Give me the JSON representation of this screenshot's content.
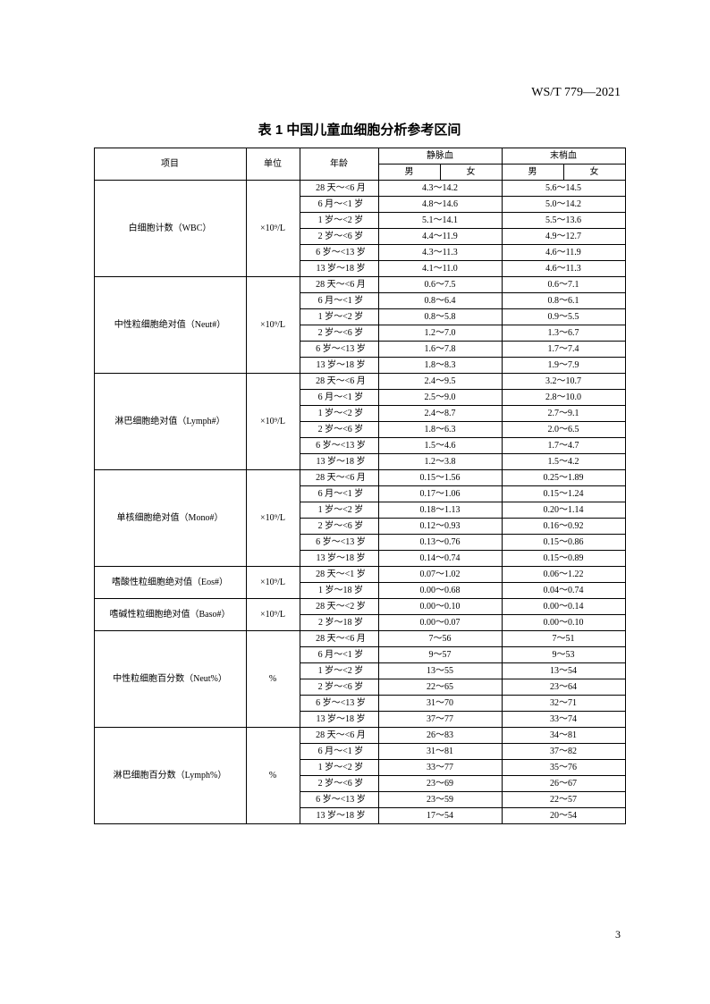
{
  "doc_code": "WS/T 779—2021",
  "table_title": "表 1  中国儿童血细胞分析参考区间",
  "page_number": "3",
  "header": {
    "item": "项目",
    "unit": "单位",
    "age": "年龄",
    "venous": "静脉血",
    "capillary": "末梢血",
    "male": "男",
    "female": "女"
  },
  "unit_e9": "×10⁹/L",
  "unit_pct": "%",
  "groups": [
    {
      "item": "白细胞计数（WBC）",
      "unit": "×10⁹/L",
      "rows": [
        {
          "age": "28 天～<6 月",
          "v": "4.3～14.2",
          "c": "5.6～14.5"
        },
        {
          "age": "6 月～<1 岁",
          "v": "4.8～14.6",
          "c": "5.0～14.2"
        },
        {
          "age": "1 岁～<2 岁",
          "v": "5.1～14.1",
          "c": "5.5～13.6"
        },
        {
          "age": "2 岁～<6 岁",
          "v": "4.4～11.9",
          "c": "4.9～12.7"
        },
        {
          "age": "6 岁～<13 岁",
          "v": "4.3～11.3",
          "c": "4.6～11.9"
        },
        {
          "age": "13 岁～18 岁",
          "v": "4.1～11.0",
          "c": "4.6～11.3"
        }
      ]
    },
    {
      "item": "中性粒细胞绝对值（Neut#）",
      "unit": "×10⁹/L",
      "rows": [
        {
          "age": "28 天～<6 月",
          "v": "0.6～7.5",
          "c": "0.6～7.1"
        },
        {
          "age": "6 月～<1 岁",
          "v": "0.8～6.4",
          "c": "0.8～6.1"
        },
        {
          "age": "1 岁～<2 岁",
          "v": "0.8～5.8",
          "c": "0.9～5.5"
        },
        {
          "age": "2 岁～<6 岁",
          "v": "1.2～7.0",
          "c": "1.3～6.7"
        },
        {
          "age": "6 岁～<13 岁",
          "v": "1.6～7.8",
          "c": "1.7～7.4"
        },
        {
          "age": "13 岁～18 岁",
          "v": "1.8～8.3",
          "c": "1.9～7.9"
        }
      ]
    },
    {
      "item": "淋巴细胞绝对值（Lymph#）",
      "unit": "×10⁹/L",
      "rows": [
        {
          "age": "28 天～<6 月",
          "v": "2.4～9.5",
          "c": "3.2～10.7"
        },
        {
          "age": "6 月～<1 岁",
          "v": "2.5～9.0",
          "c": "2.8～10.0"
        },
        {
          "age": "1 岁～<2 岁",
          "v": "2.4～8.7",
          "c": "2.7～9.1"
        },
        {
          "age": "2 岁～<6 岁",
          "v": "1.8～6.3",
          "c": "2.0～6.5"
        },
        {
          "age": "6 岁～<13 岁",
          "v": "1.5～4.6",
          "c": "1.7～4.7"
        },
        {
          "age": "13 岁～18 岁",
          "v": "1.2～3.8",
          "c": "1.5～4.2"
        }
      ]
    },
    {
      "item": "单核细胞绝对值（Mono#）",
      "unit": "×10⁹/L",
      "rows": [
        {
          "age": "28 天～<6 月",
          "v": "0.15～1.56",
          "c": "0.25～1.89"
        },
        {
          "age": "6 月～<1 岁",
          "v": "0.17～1.06",
          "c": "0.15～1.24"
        },
        {
          "age": "1 岁～<2 岁",
          "v": "0.18～1.13",
          "c": "0.20～1.14"
        },
        {
          "age": "2 岁～<6 岁",
          "v": "0.12～0.93",
          "c": "0.16～0.92"
        },
        {
          "age": "6 岁～<13 岁",
          "v": "0.13～0.76",
          "c": "0.15～0.86"
        },
        {
          "age": "13 岁～18 岁",
          "v": "0.14～0.74",
          "c": "0.15～0.89"
        }
      ]
    },
    {
      "item": "嗜酸性粒细胞绝对值（Eos#）",
      "unit": "×10⁹/L",
      "rows": [
        {
          "age": "28 天～<1 岁",
          "v": "0.07～1.02",
          "c": "0.06～1.22"
        },
        {
          "age": "1 岁～18 岁",
          "v": "0.00～0.68",
          "c": "0.04～0.74"
        }
      ]
    },
    {
      "item": "嗜碱性粒细胞绝对值（Baso#）",
      "unit": "×10⁹/L",
      "rows": [
        {
          "age": "28 天～<2 岁",
          "v": "0.00～0.10",
          "c": "0.00～0.14"
        },
        {
          "age": "2 岁～18 岁",
          "v": "0.00～0.07",
          "c": "0.00～0.10"
        }
      ]
    },
    {
      "item": "中性粒细胞百分数（Neut%）",
      "unit": "%",
      "rows": [
        {
          "age": "28 天～<6 月",
          "v": "7～56",
          "c": "7～51"
        },
        {
          "age": "6 月～<1 岁",
          "v": "9～57",
          "c": "9～53"
        },
        {
          "age": "1 岁～<2 岁",
          "v": "13～55",
          "c": "13～54"
        },
        {
          "age": "2 岁～<6 岁",
          "v": "22～65",
          "c": "23～64"
        },
        {
          "age": "6 岁～<13 岁",
          "v": "31～70",
          "c": "32～71"
        },
        {
          "age": "13 岁～18 岁",
          "v": "37～77",
          "c": "33～74"
        }
      ]
    },
    {
      "item": "淋巴细胞百分数（Lymph%）",
      "unit": "%",
      "rows": [
        {
          "age": "28 天～<6 月",
          "v": "26～83",
          "c": "34～81"
        },
        {
          "age": "6 月～<1 岁",
          "v": "31～81",
          "c": "37～82"
        },
        {
          "age": "1 岁～<2 岁",
          "v": "33～77",
          "c": "35～76"
        },
        {
          "age": "2 岁～<6 岁",
          "v": "23～69",
          "c": "26～67"
        },
        {
          "age": "6 岁～<13 岁",
          "v": "23～59",
          "c": "22～57"
        },
        {
          "age": "13 岁～18 岁",
          "v": "17～54",
          "c": "20～54"
        }
      ]
    }
  ]
}
